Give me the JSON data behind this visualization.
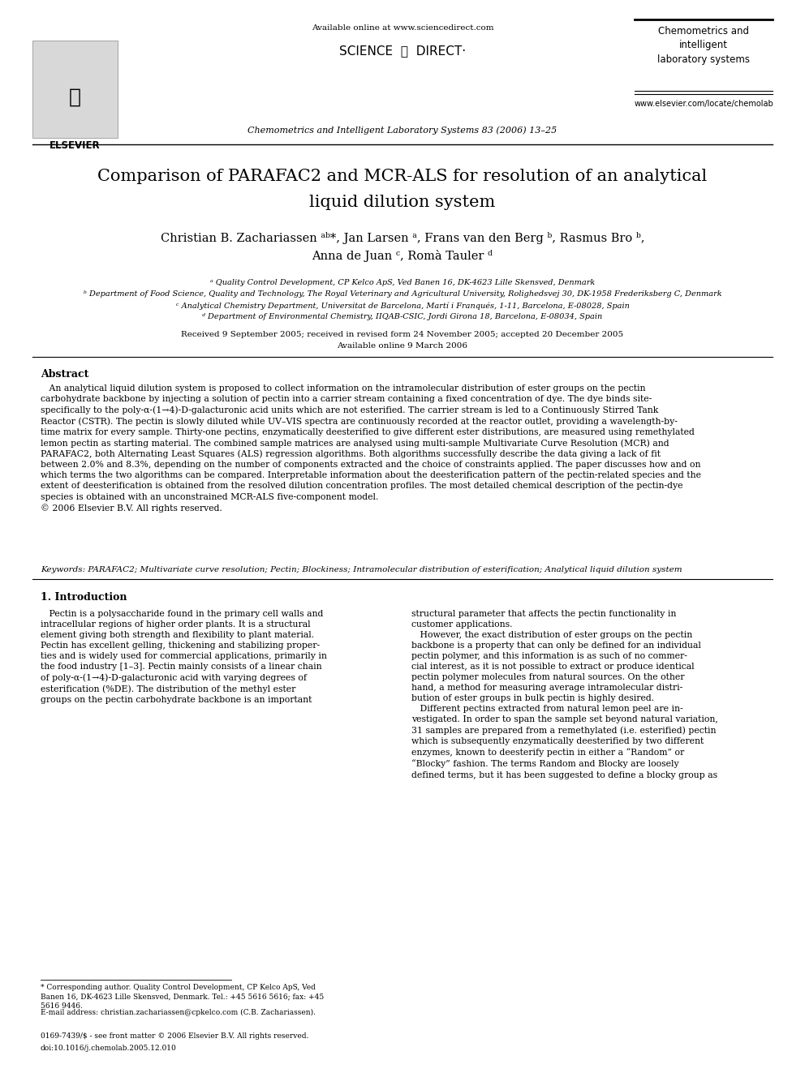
{
  "bg_color": "#ffffff",
  "elsevier_label": "ELSEVIER",
  "available_online_header": "Available online at www.sciencedirect.com",
  "sciencedirect": "SCIENCE  ⓓ  DIRECT·",
  "journal_line": "Chemometrics and Intelligent Laboratory Systems 83 (2006) 13–25",
  "journal_right_title": "Chemometrics and\nintelligent\nlaboratory systems",
  "website": "www.elsevier.com/locate/chemolab",
  "title_line1": "Comparison of PARAFAC2 and MCR-ALS for resolution of an analytical",
  "title_line2": "liquid dilution system",
  "authors_line1": "Christian B. Zachariassen ᵃᵇ*, Jan Larsen ᵃ, Frans van den Berg ᵇ, Rasmus Bro ᵇ,",
  "authors_line2": "Anna de Juan ᶜ, Romà Tauler ᵈ",
  "aff_a": "ᵃ Quality Control Development, CP Kelco ApS, Ved Banen 16, DK-4623 Lille Skensved, Denmark",
  "aff_b": "ᵇ Department of Food Science, Quality and Technology, The Royal Veterinary and Agricultural University, Rolighedsvej 30, DK-1958 Frederiksberg C, Denmark",
  "aff_c": "ᶜ Analytical Chemistry Department, Universitat de Barcelona, Martí i Franqués, 1-11, Barcelona, E-08028, Spain",
  "aff_d": "ᵈ Department of Environmental Chemistry, IIQAB-CSIC, Jordi Girona 18, Barcelona, E-08034, Spain",
  "received": "Received 9 September 2005; received in revised form 24 November 2005; accepted 20 December 2005",
  "available_date": "Available online 9 March 2006",
  "abstract_title": "Abstract",
  "abstract_body": "   An analytical liquid dilution system is proposed to collect information on the intramolecular distribution of ester groups on the pectin\ncarbohydrate backbone by injecting a solution of pectin into a carrier stream containing a fixed concentration of dye. The dye binds site-\nspecifically to the poly-α-(1→4)-D-galacturonic acid units which are not esterified. The carrier stream is led to a Continuously Stirred Tank\nReactor (CSTR). The pectin is slowly diluted while UV–VIS spectra are continuously recorded at the reactor outlet, providing a wavelength-by-\ntime matrix for every sample. Thirty-one pectins, enzymatically deesterified to give different ester distributions, are measured using remethylated\nlemon pectin as starting material. The combined sample matrices are analysed using multi-sample Multivariate Curve Resolution (MCR) and\nPARAFAC2, both Alternating Least Squares (ALS) regression algorithms. Both algorithms successfully describe the data giving a lack of fit\nbetween 2.0% and 8.3%, depending on the number of components extracted and the choice of constraints applied. The paper discusses how and on\nwhich terms the two algorithms can be compared. Interpretable information about the deesterification pattern of the pectin-related species and the\nextent of deesterification is obtained from the resolved dilution concentration profiles. The most detailed chemical description of the pectin-dye\nspecies is obtained with an unconstrained MCR-ALS five-component model.\n© 2006 Elsevier B.V. All rights reserved.",
  "keywords": "Keywords: PARAFAC2; Multivariate curve resolution; Pectin; Blockiness; Intramolecular distribution of esterification; Analytical liquid dilution system",
  "sec1_title": "1. Introduction",
  "col1_text": "   Pectin is a polysaccharide found in the primary cell walls and\nintracellular regions of higher order plants. It is a structural\nelement giving both strength and flexibility to plant material.\nPectin has excellent gelling, thickening and stabilizing proper-\nties and is widely used for commercial applications, primarily in\nthe food industry [1–3]. Pectin mainly consists of a linear chain\nof poly-α-(1→4)-D-galacturonic acid with varying degrees of\nesterification (%DE). The distribution of the methyl ester\ngroups on the pectin carbohydrate backbone is an important",
  "col2_text": "structural parameter that affects the pectin functionality in\ncustomer applications.\n   However, the exact distribution of ester groups on the pectin\nbackbone is a property that can only be defined for an individual\npectin polymer, and this information is as such of no commer-\ncial interest, as it is not possible to extract or produce identical\npectin polymer molecules from natural sources. On the other\nhand, a method for measuring average intramolecular distri-\nbution of ester groups in bulk pectin is highly desired.\n   Different pectins extracted from natural lemon peel are in-\nvestigated. In order to span the sample set beyond natural variation,\n31 samples are prepared from a remethylated (i.e. esterified) pectin\nwhich is subsequently enzymatically deesterified by two different\nenzymes, known to deesterify pectin in either a “Random” or\n“Blocky” fashion. The terms Random and Blocky are loosely\ndefined terms, but it has been suggested to define a blocky group as",
  "footnote1": "* Corresponding author. Quality Control Development, CP Kelco ApS, Ved\nBanen 16, DK-4623 Lille Skensved, Denmark. Tel.: +45 5616 5616; fax: +45\n5616 9446.",
  "footnote2": "E-mail address: christian.zachariassen@cpkelco.com (C.B. Zachariassen).",
  "footer_issn": "0169-7439/$ - see front matter © 2006 Elsevier B.V. All rights reserved.",
  "footer_doi": "doi:10.1016/j.chemolab.2005.12.010"
}
